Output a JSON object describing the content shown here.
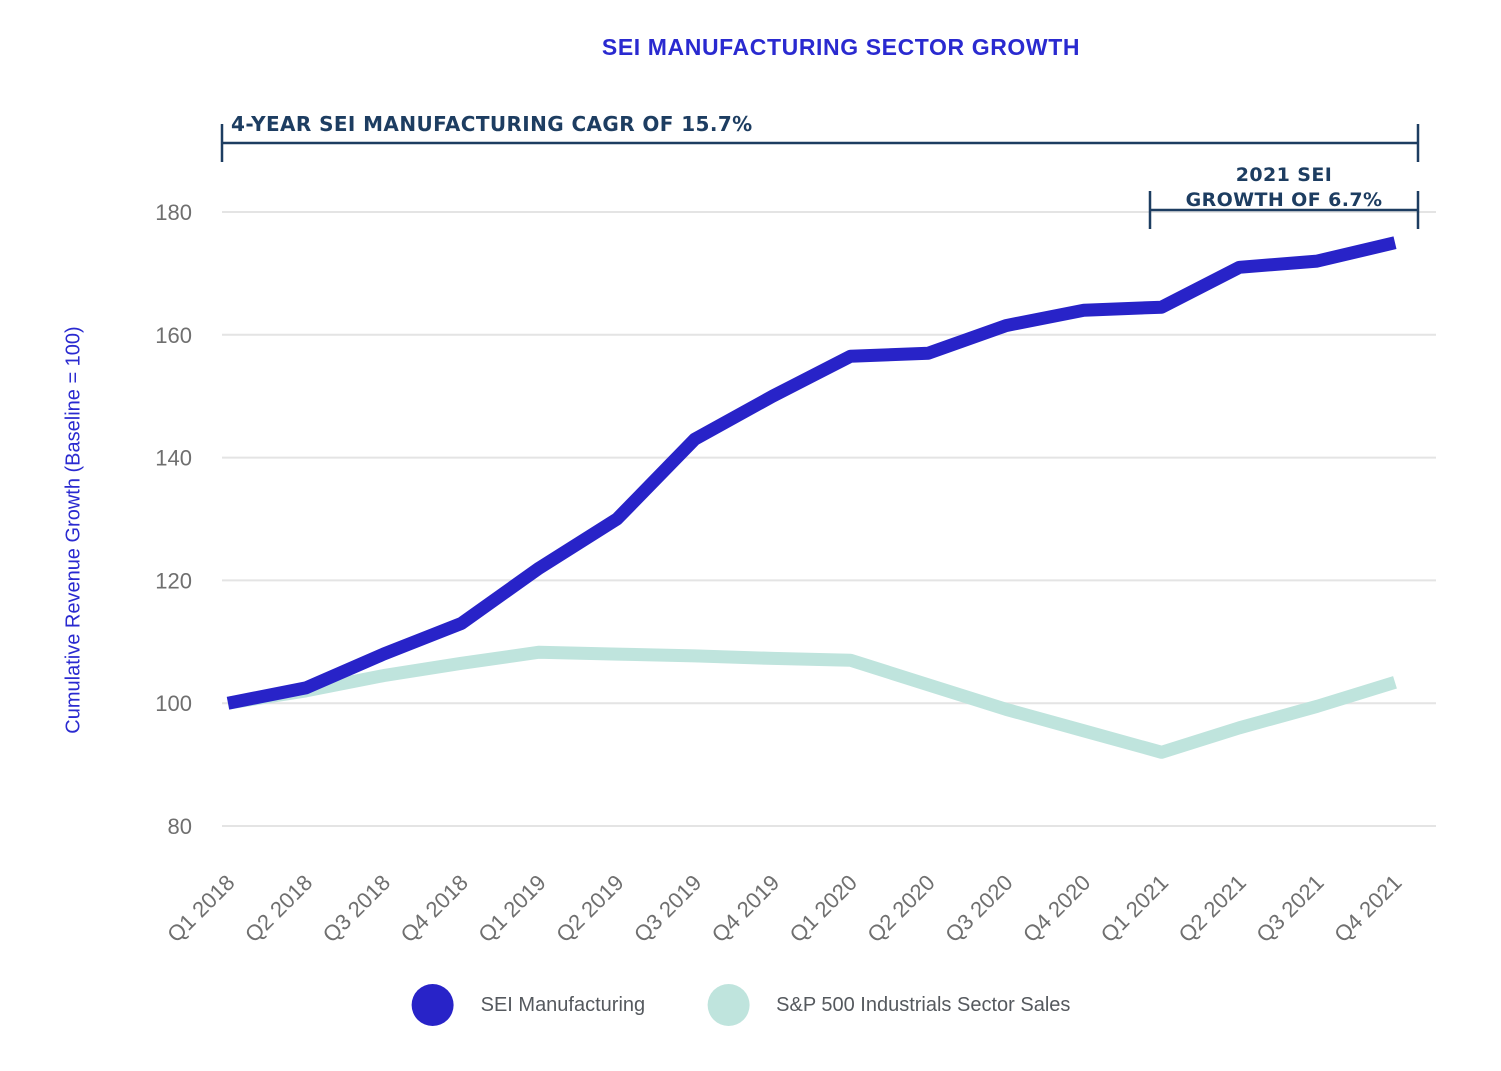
{
  "title": "SEI MANUFACTURING SECTOR GROWTH",
  "colors": {
    "title_blue": "#2a2ad0",
    "axis_title_blue": "#2a2ad0",
    "annotation_navy": "#1d3d61",
    "tick_gray": "#6f6f6f",
    "legend_text_gray": "#55595e",
    "gridline_gray": "#e4e4e4",
    "sei_blue": "#2823c8",
    "sp500_teal": "#bfe4dd"
  },
  "chart_data": {
    "type": "line",
    "title": "SEI MANUFACTURING SECTOR GROWTH",
    "xlabel": "",
    "ylabel": "Cumulative Revenue Growth (Baseline = 100)",
    "ylim": [
      80,
      190
    ],
    "yticks": [
      80,
      100,
      120,
      140,
      160,
      180
    ],
    "grid": true,
    "legend_position": "bottom",
    "categories": [
      "Q1 2018",
      "Q2 2018",
      "Q3 2018",
      "Q4 2018",
      "Q1 2019",
      "Q2 2019",
      "Q3 2019",
      "Q4 2019",
      "Q1 2020",
      "Q2 2020",
      "Q3 2020",
      "Q4 2020",
      "Q1 2021",
      "Q2 2021",
      "Q3 2021",
      "Q4 2021"
    ],
    "series": [
      {
        "name": "SEI Manufacturing",
        "color": "#2823c8",
        "values": [
          100,
          102.5,
          108,
          113,
          122,
          130,
          143,
          150,
          156.5,
          157,
          161.5,
          164,
          164.5,
          171,
          172,
          175
        ]
      },
      {
        "name": "S&P 500 Industrials Sector Sales",
        "color": "#bfe4dd",
        "values": [
          100,
          102,
          104.5,
          106.5,
          108.3,
          108,
          107.7,
          107.3,
          107,
          103,
          99,
          95.5,
          92,
          96,
          99.5,
          103.4
        ]
      }
    ],
    "annotations": [
      {
        "text": "4-YEAR SEI MANUFACTURING CAGR OF 15.7%",
        "span": [
          "Q1 2018",
          "Q4 2021"
        ]
      },
      {
        "text": "2021 SEI GROWTH OF 6.7%",
        "line1": "2021 SEI",
        "line2": "GROWTH OF 6.7%",
        "span": [
          "Q1 2021",
          "Q4 2021"
        ]
      }
    ]
  }
}
